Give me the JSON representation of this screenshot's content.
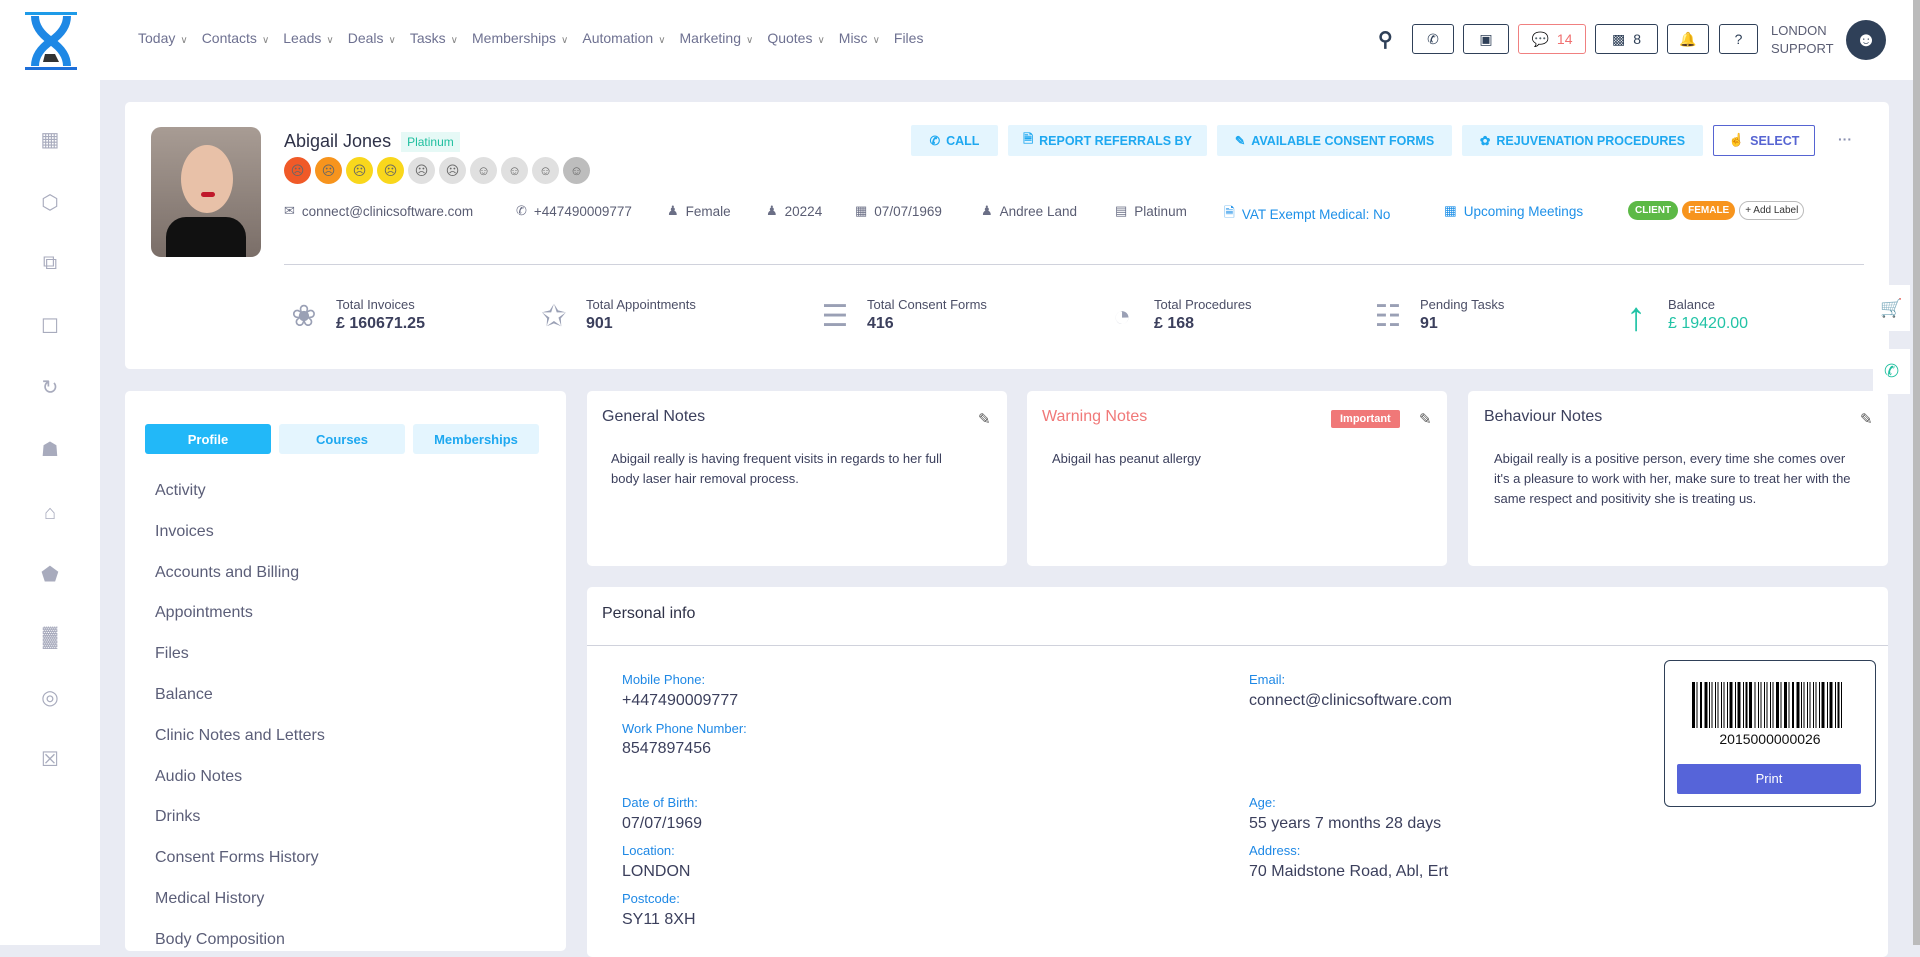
{
  "header": {
    "nav": [
      "Today",
      "Contacts",
      "Leads",
      "Deals",
      "Tasks",
      "Memberships",
      "Automation",
      "Marketing",
      "Quotes",
      "Misc",
      "Files"
    ],
    "nav_has_dropdown": [
      true,
      true,
      true,
      true,
      true,
      true,
      true,
      true,
      true,
      true,
      false
    ],
    "chat_count": "14",
    "store_count": "8",
    "user_line1": "LONDON",
    "user_line2": "SUPPORT"
  },
  "sidebar": {
    "icons": [
      "calendar-icon",
      "box-icon",
      "copy-icon",
      "basket-icon",
      "history-icon",
      "gift-icon",
      "cart-icon",
      "tag-icon",
      "report-icon",
      "user-sync-icon",
      "lock-icon"
    ]
  },
  "profile": {
    "name": "Abigail Jones",
    "tier": "Platinum",
    "mood_levels": 10,
    "mood_colors": [
      "#f05a28",
      "#f7941d",
      "#f9d71c",
      "#f9d71c",
      "#e0e0e0",
      "#e0e0e0",
      "#e0e0e0",
      "#e0e0e0",
      "#e0e0e0",
      "#bdbdbd"
    ],
    "actions": {
      "call": "CALL",
      "report": "REPORT REFERRALS BY",
      "consent": "AVAILABLE CONSENT FORMS",
      "rejuv": "REJUVENATION PROCEDURES",
      "select": "SELECT",
      "more": "···"
    },
    "info": {
      "email": "connect@clinicsoftware.com",
      "phone": "+447490009777",
      "gender": "Female",
      "id": "20224",
      "dob": "07/07/1969",
      "staff": "Andree Land",
      "membership": "Platinum",
      "vat": "VAT Exempt Medical: No",
      "meetings": "Upcoming Meetings"
    },
    "labels": {
      "client": "CLIENT",
      "female": "FEMALE",
      "add": "+ Add Label",
      "client_color": "#5cb946",
      "female_color": "#f7941d"
    },
    "stats": [
      {
        "label": "Total Invoices",
        "value": "£ 160671.25"
      },
      {
        "label": "Total Appointments",
        "value": "901"
      },
      {
        "label": "Total Consent Forms",
        "value": "416"
      },
      {
        "label": "Total Procedures",
        "value": "£ 168"
      },
      {
        "label": "Pending Tasks",
        "value": "91"
      },
      {
        "label": "Balance",
        "value": "£ 19420.00"
      }
    ]
  },
  "left_panel": {
    "tabs": [
      "Profile",
      "Courses",
      "Memberships"
    ],
    "active_tab": "Profile",
    "items": [
      "Activity",
      "Invoices",
      "Accounts and Billing",
      "Appointments",
      "Files",
      "Balance",
      "Clinic Notes and Letters",
      "Audio Notes",
      "Drinks",
      "Consent Forms History",
      "Medical History",
      "Body Composition"
    ]
  },
  "notes": {
    "general": {
      "title": "General Notes",
      "text": "Abigail really is having frequent visits in regards to her full body laser hair removal process."
    },
    "warning": {
      "title": "Warning Notes",
      "badge": "Important",
      "text": "Abigail has peanut allergy"
    },
    "behaviour": {
      "title": "Behaviour Notes",
      "text": "Abigail really is a positive person, every time she comes over it's a pleasure to work with her, make sure to treat her with the same respect and positivity she is treating us."
    }
  },
  "personal": {
    "title": "Personal info",
    "mobile_label": "Mobile Phone:",
    "mobile": "+447490009777",
    "work_label": "Work Phone Number:",
    "work": "8547897456",
    "email_label": "Email:",
    "email": "connect@clinicsoftware.com",
    "dob_label": "Date of Birth:",
    "dob": "07/07/1969",
    "age_label": "Age:",
    "age": "55 years 7 months 28 days",
    "location_label": "Location:",
    "location": "LONDON",
    "address_label": "Address:",
    "address": "70 Maidstone Road, Abl, Ert",
    "postcode_label": "Postcode:",
    "postcode": "SY11 8XH",
    "barcode": "2015000000026",
    "print": "Print"
  }
}
